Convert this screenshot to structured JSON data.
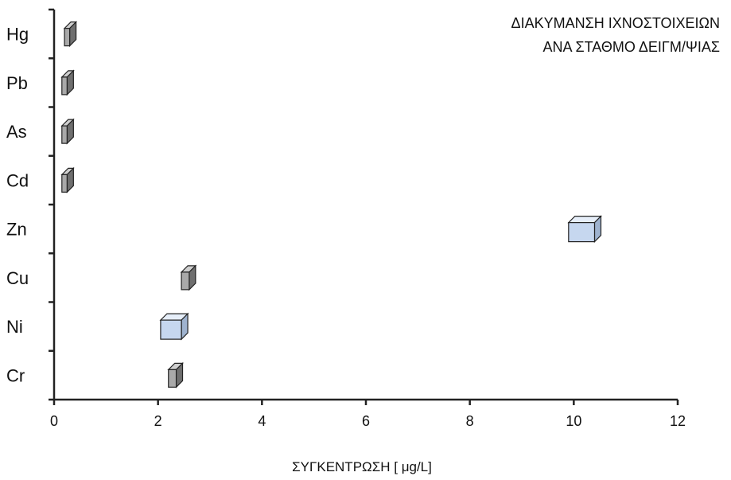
{
  "chart_data": {
    "type": "floating-bar",
    "title_lines": [
      "ΔΙΑΚΥΜΑΝΣΗ ΙΧΝΟΣΤΟΙΧΕΙΩΝ",
      "ΑΝΑ ΣΤΑΘΜΟ ΔΕΙΓΜ/ΨΙΑΣ"
    ],
    "xlabel": "ΣΥΓΚΕΝΤΡΩΣΗ [ μg/L]",
    "xlim": [
      0,
      12
    ],
    "xticks": [
      "0",
      "2",
      "4",
      "6",
      "8",
      "10",
      "12"
    ],
    "categories": [
      "Hg",
      "Pb",
      "As",
      "Cd",
      "Zn",
      "Cu",
      "Ni",
      "Cr"
    ],
    "ranges": [
      {
        "category": "Hg",
        "min": 0.2,
        "max": 0.3
      },
      {
        "category": "Pb",
        "min": 0.15,
        "max": 0.25
      },
      {
        "category": "As",
        "min": 0.15,
        "max": 0.25
      },
      {
        "category": "Cd",
        "min": 0.15,
        "max": 0.25
      },
      {
        "category": "Zn",
        "min": 9.9,
        "max": 10.4
      },
      {
        "category": "Cu",
        "min": 2.45,
        "max": 2.6
      },
      {
        "category": "Ni",
        "min": 2.05,
        "max": 2.45
      },
      {
        "category": "Cr",
        "min": 2.2,
        "max": 2.35
      }
    ],
    "colors": {
      "narrow_bar": "#a9a9a9",
      "wide_bar": "#c6d7ef",
      "outline": "#222222",
      "axis": "#222222"
    }
  }
}
